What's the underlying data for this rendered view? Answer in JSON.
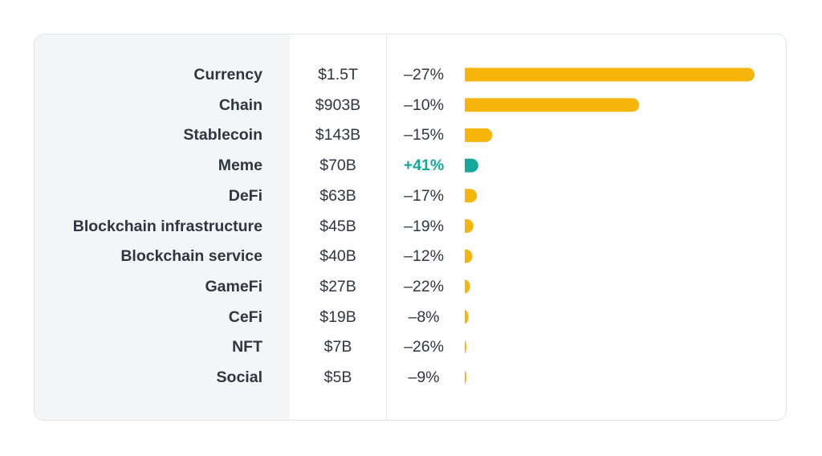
{
  "chart_data": {
    "type": "bar",
    "orientation": "horizontal",
    "title": "",
    "categories": [
      "Currency",
      "Chain",
      "Stablecoin",
      "Meme",
      "DeFi",
      "Blockchain infrastructure",
      "Blockchain service",
      "GameFi",
      "CeFi",
      "NFT",
      "Social"
    ],
    "values_billion_usd": [
      1500,
      903,
      143,
      70,
      63,
      45,
      40,
      27,
      19,
      7,
      5
    ],
    "market_cap_labels": [
      "$1.5T",
      "$903B",
      "$143B",
      "$70B",
      "$63B",
      "$45B",
      "$40B",
      "$27B",
      "$19B",
      "$7B",
      "$5B"
    ],
    "change_labels": [
      "–27%",
      "–10%",
      "–15%",
      "+41%",
      "–17%",
      "–19%",
      "–12%",
      "–22%",
      "–8%",
      "–26%",
      "–9%"
    ],
    "change_values": [
      -27,
      -10,
      -15,
      41,
      -17,
      -19,
      -12,
      -22,
      -8,
      -26,
      -9
    ],
    "colors": {
      "negative": "#f5b50c",
      "positive": "#14a89b"
    }
  }
}
